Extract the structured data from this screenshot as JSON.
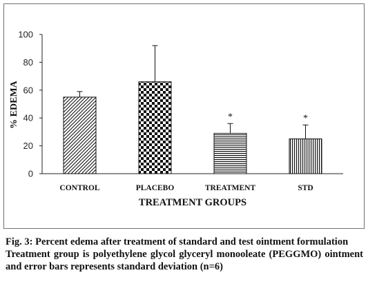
{
  "chart_data": {
    "type": "bar",
    "categories": [
      "CONTROL",
      "PLACEBO",
      "TREATMENT",
      "STD"
    ],
    "values": [
      55,
      66,
      29,
      25
    ],
    "error": [
      4,
      26,
      7,
      10
    ],
    "annotations": [
      "",
      "",
      "*",
      "*"
    ],
    "patterns": [
      "diagonal-hatch",
      "checkerboard",
      "horizontal-lines",
      "vertical-lines"
    ],
    "xlabel": "TREATMENT GROUPS",
    "ylabel": "% EDEMA",
    "ylim": [
      0,
      100
    ],
    "yticks": [
      0,
      20,
      40,
      60,
      80,
      100
    ],
    "grid": false,
    "legend": "none"
  },
  "caption": {
    "title": "Fig. 3: Percent edema after treatment of standard and test ointment formulation",
    "body": "Treatment group is polyethylene glycol glyceryl monooleate (PEGGMO) ointment and error bars represents standard deviation (n=6)"
  }
}
